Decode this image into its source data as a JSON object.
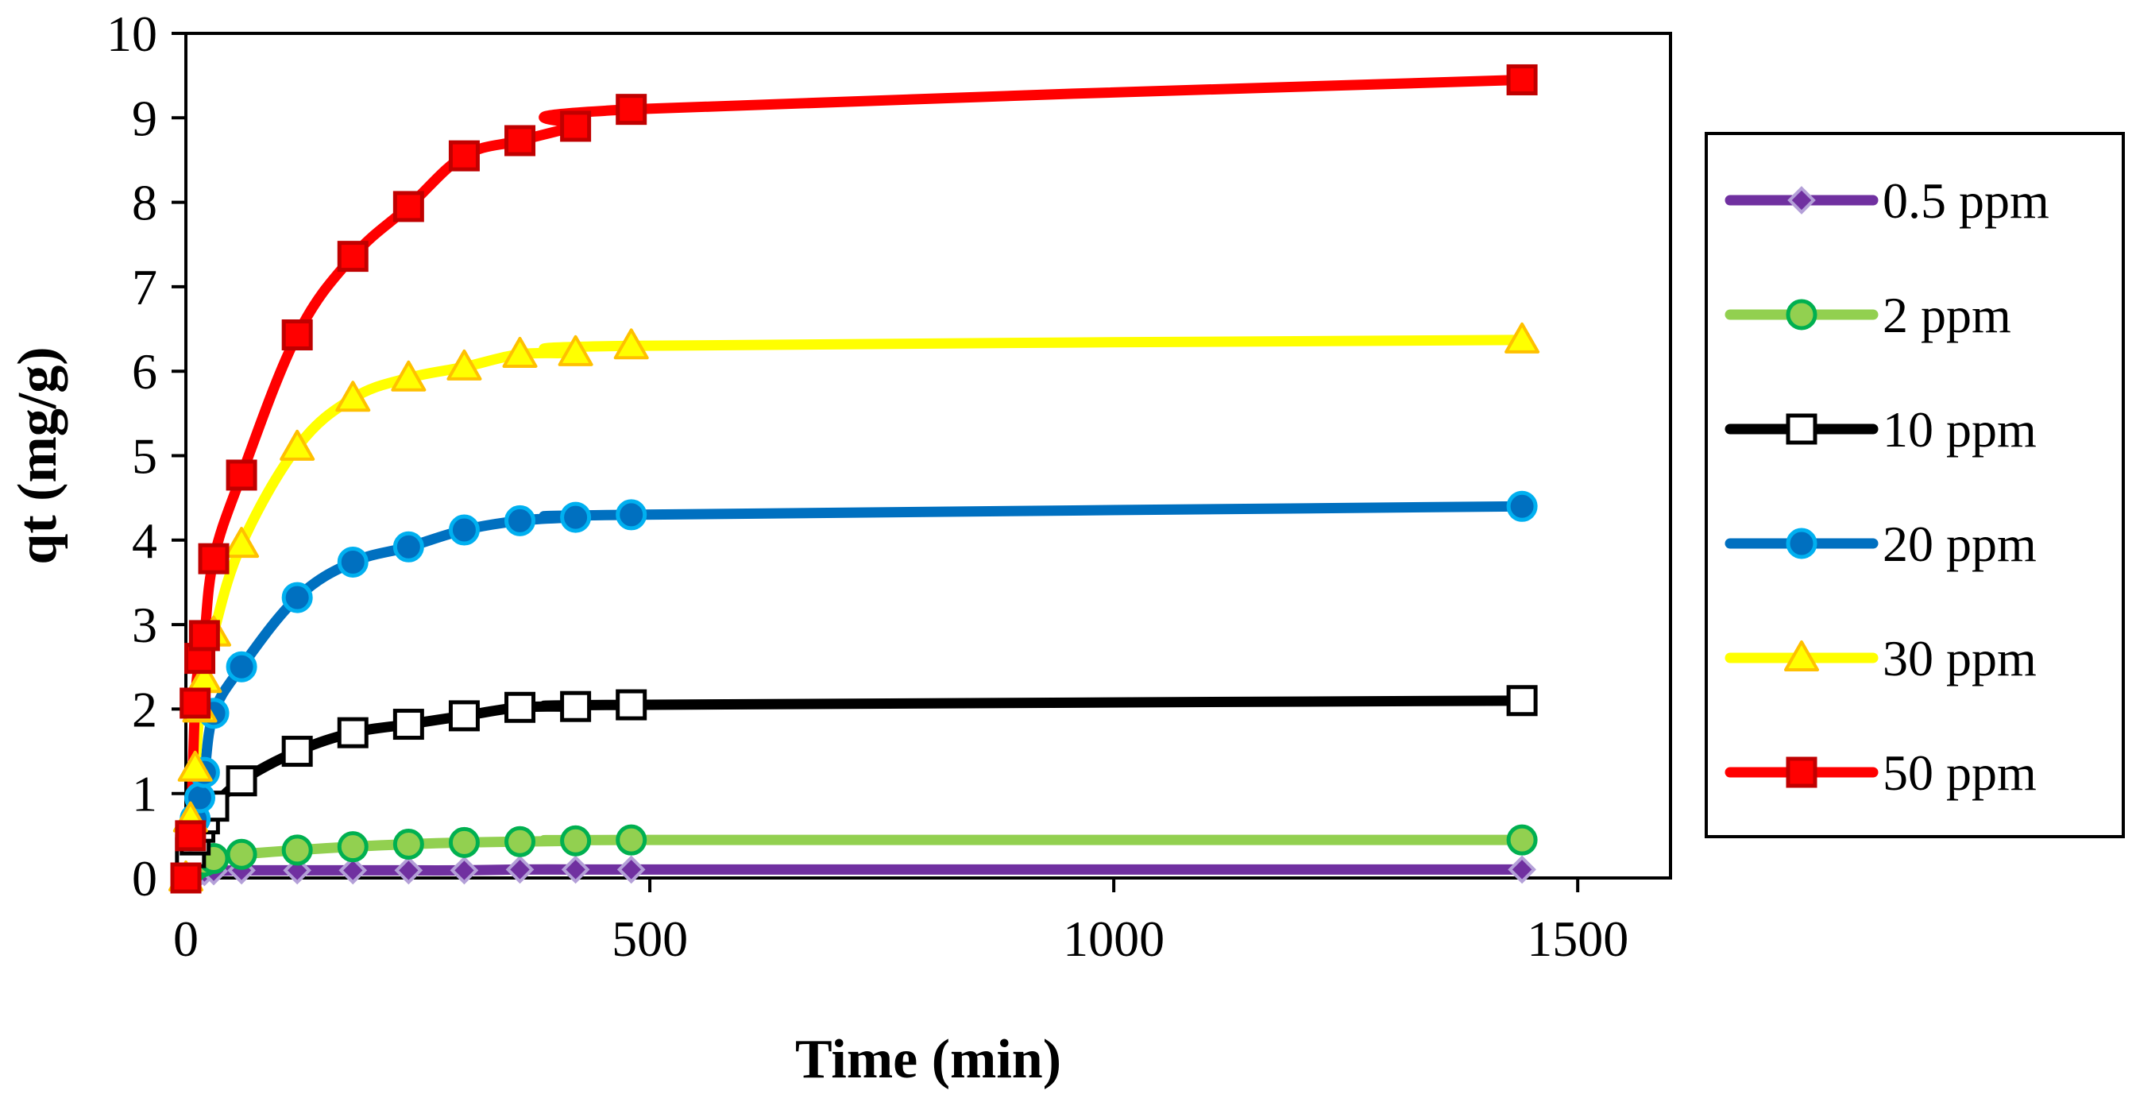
{
  "chart_data": {
    "type": "line",
    "title": "",
    "xlabel": "Time (min)",
    "ylabel": "qt (mg/g)",
    "xlim": [
      0,
      1600
    ],
    "ylim": [
      0,
      10
    ],
    "xticks": [
      0,
      500,
      1000,
      1500
    ],
    "yticks": [
      0,
      1,
      2,
      3,
      4,
      5,
      6,
      7,
      8,
      9,
      10
    ],
    "x_tick_labels": [
      "0",
      "500",
      "1000",
      "1500"
    ],
    "y_tick_labels": [
      "0",
      "1",
      "2",
      "3",
      "4",
      "5",
      "6",
      "7",
      "8",
      "9",
      "10"
    ],
    "grid": false,
    "legend_position": "right",
    "series": [
      {
        "name": "0.5 ppm",
        "color": "#7030A0",
        "marker": "diamond",
        "marker_fill": "#7030A0",
        "marker_stroke": "#B4A0D8",
        "x": [
          0,
          5,
          10,
          15,
          20,
          30,
          60,
          120,
          180,
          240,
          300,
          360,
          420,
          480,
          1440
        ],
        "y": [
          0,
          0.03,
          0.05,
          0.06,
          0.07,
          0.08,
          0.09,
          0.09,
          0.09,
          0.09,
          0.09,
          0.1,
          0.1,
          0.1,
          0.1
        ]
      },
      {
        "name": "2 ppm",
        "color": "#92D050",
        "marker": "circle",
        "marker_fill": "#92D050",
        "marker_stroke": "#00B050",
        "x": [
          0,
          5,
          10,
          15,
          20,
          30,
          60,
          120,
          180,
          240,
          300,
          360,
          420,
          480,
          1440
        ],
        "y": [
          0,
          0.1,
          0.15,
          0.18,
          0.2,
          0.23,
          0.28,
          0.33,
          0.37,
          0.4,
          0.42,
          0.43,
          0.44,
          0.45,
          0.45
        ]
      },
      {
        "name": "10 ppm",
        "color": "#000000",
        "marker": "square",
        "marker_fill": "#ffffff",
        "marker_stroke": "#000000",
        "x": [
          0,
          5,
          10,
          15,
          20,
          30,
          60,
          120,
          180,
          240,
          300,
          360,
          420,
          480,
          1440
        ],
        "y": [
          0,
          0.3,
          0.45,
          0.6,
          0.7,
          0.85,
          1.15,
          1.5,
          1.72,
          1.82,
          1.92,
          2.02,
          2.03,
          2.05,
          2.1
        ]
      },
      {
        "name": "20 ppm",
        "color": "#0070C0",
        "marker": "circle",
        "marker_fill": "#0070C0",
        "marker_stroke": "#00B0F0",
        "x": [
          0,
          5,
          10,
          15,
          20,
          30,
          60,
          120,
          180,
          240,
          300,
          360,
          420,
          480,
          1440
        ],
        "y": [
          0,
          0.5,
          0.7,
          0.95,
          1.25,
          1.95,
          2.5,
          3.32,
          3.74,
          3.92,
          4.12,
          4.23,
          4.27,
          4.3,
          4.4
        ]
      },
      {
        "name": "30 ppm",
        "color": "#FFFF00",
        "marker": "triangle",
        "marker_fill": "#FFFF00",
        "marker_stroke": "#FFC000",
        "x": [
          0,
          5,
          10,
          15,
          20,
          30,
          60,
          120,
          180,
          240,
          300,
          360,
          420,
          480,
          1440
        ],
        "y": [
          0,
          0.7,
          1.3,
          2.0,
          2.35,
          2.9,
          3.95,
          5.1,
          5.68,
          5.92,
          6.05,
          6.2,
          6.22,
          6.3,
          6.37
        ]
      },
      {
        "name": "50 ppm",
        "color": "#FF0000",
        "marker": "square",
        "marker_fill": "#FF0000",
        "marker_stroke": "#C00000",
        "x": [
          0,
          5,
          10,
          15,
          20,
          30,
          60,
          120,
          180,
          240,
          300,
          360,
          420,
          480,
          1440
        ],
        "y": [
          0,
          0.5,
          2.07,
          2.6,
          2.87,
          3.78,
          4.77,
          6.43,
          7.36,
          7.95,
          8.55,
          8.73,
          8.9,
          9.1,
          9.45
        ]
      }
    ]
  }
}
